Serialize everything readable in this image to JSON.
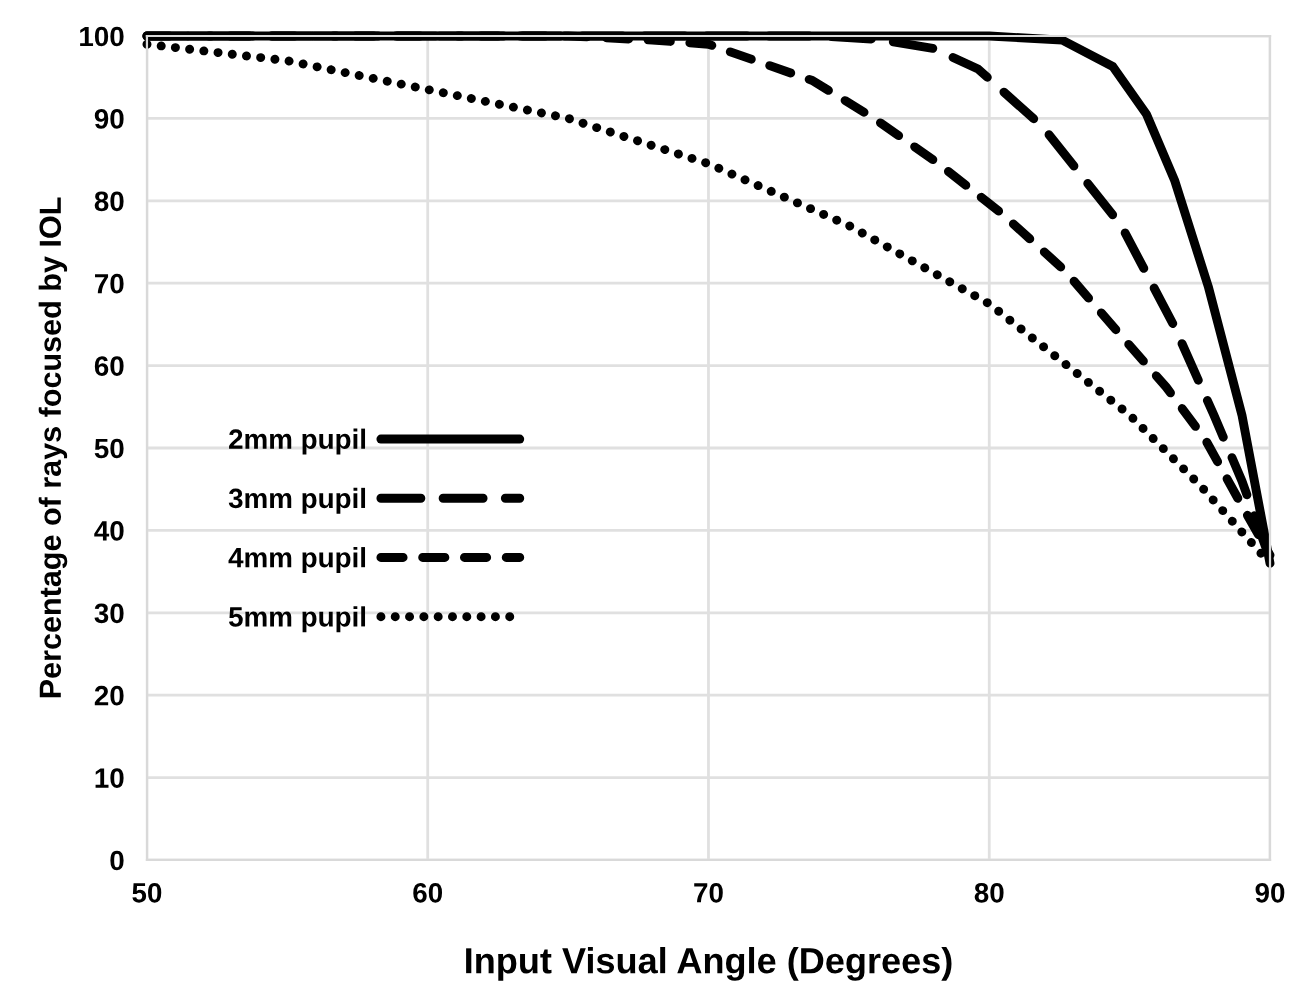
{
  "chart_data": {
    "type": "line",
    "xlabel": "Input Visual Angle (Degrees)",
    "ylabel": "Percentage of rays focused by IOL",
    "xlim": [
      50,
      90
    ],
    "ylim": [
      0,
      100
    ],
    "xticks": [
      50,
      60,
      70,
      80,
      90
    ],
    "yticks": [
      0,
      10,
      20,
      30,
      40,
      50,
      60,
      70,
      80,
      90,
      100
    ],
    "grid": true,
    "legend": "left",
    "series": [
      {
        "name": "2mm pupil",
        "color": "#000000",
        "line_style": "solid",
        "x": [
          50,
          60,
          70,
          80,
          82.6,
          84.4,
          85.6,
          86.6,
          87.8,
          89,
          90
        ],
        "values": [
          100,
          100,
          100,
          100,
          99.5,
          96.3,
          90.5,
          82.5,
          69.6,
          54,
          36
        ]
      },
      {
        "name": "3mm pupil",
        "color": "#000000",
        "line_style": "long-dashed",
        "x": [
          50,
          60,
          70,
          74,
          76,
          78,
          79.6,
          81.9,
          84.7,
          86.6,
          88,
          89,
          90
        ],
        "values": [
          100,
          100,
          100,
          100,
          99.6,
          98.5,
          96,
          89,
          77,
          64.7,
          54,
          46,
          36.5
        ]
      },
      {
        "name": "4mm pupil",
        "color": "#000000",
        "line_style": "dashed",
        "x": [
          50,
          60,
          65,
          68,
          70,
          73.7,
          75.9,
          78.2,
          80.5,
          82.7,
          84.6,
          86.3,
          87.7,
          89,
          90
        ],
        "values": [
          100,
          100,
          100,
          99.5,
          99,
          94.6,
          90,
          84.5,
          78.3,
          71.5,
          64,
          57.4,
          51,
          43,
          37
        ]
      },
      {
        "name": "5mm pupil",
        "color": "#000000",
        "line_style": "dotted",
        "x": [
          50,
          55,
          60,
          65,
          70,
          75,
          80,
          85,
          87.5,
          90
        ],
        "values": [
          99,
          97,
          93.5,
          90,
          84.5,
          77,
          67.5,
          54,
          45.5,
          36
        ]
      }
    ]
  }
}
